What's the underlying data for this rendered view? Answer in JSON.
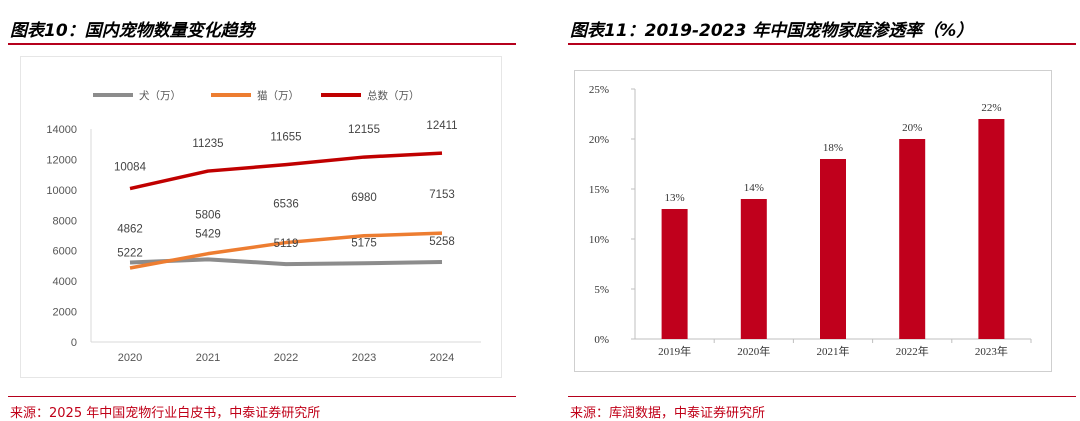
{
  "left": {
    "title": "图表10：国内宠物数量变化趋势",
    "source": "来源：2025 年中国宠物行业白皮书，中泰证券研究所"
  },
  "right": {
    "title": "图表11：2019-2023 年中国宠物家庭渗透率（%）",
    "source": "来源：库润数据，中泰证券研究所"
  },
  "colors": {
    "accent": "#b5001c",
    "dog": "#8c8c8c",
    "cat": "#ed7d31",
    "total": "#c00000",
    "bar": "#c0001c"
  },
  "chart_data": [
    {
      "type": "line",
      "title": "",
      "x": [
        "2020",
        "2021",
        "2022",
        "2023",
        "2024"
      ],
      "ylim": [
        0,
        14000
      ],
      "yticks": [
        0,
        2000,
        4000,
        6000,
        8000,
        10000,
        12000,
        14000
      ],
      "grid": false,
      "legend_position": "top",
      "series": [
        {
          "name": "犬（万）",
          "values": [
            5222,
            5429,
            5119,
            5175,
            5258
          ],
          "labels": [
            "5222",
            "5429",
            "5119",
            "5175",
            "5258"
          ]
        },
        {
          "name": "猫（万）",
          "values": [
            4862,
            5806,
            6536,
            6980,
            7153
          ],
          "labels": [
            "4862",
            "5806",
            "6536",
            "6980",
            "7153"
          ]
        },
        {
          "name": "总数（万）",
          "values": [
            10084,
            11235,
            11655,
            12155,
            12411
          ],
          "labels": [
            "10084",
            "11235",
            "11655",
            "12155",
            "12411"
          ]
        }
      ]
    },
    {
      "type": "bar",
      "title": "",
      "categories": [
        "2019年",
        "2020年",
        "2021年",
        "2022年",
        "2023年"
      ],
      "values": [
        13,
        14,
        18,
        20,
        22
      ],
      "data_labels": [
        "13%",
        "14%",
        "18%",
        "20%",
        "22%"
      ],
      "ylim": [
        0,
        25
      ],
      "yticks": [
        0,
        5,
        10,
        15,
        20,
        25
      ],
      "ytick_labels": [
        "0%",
        "5%",
        "10%",
        "15%",
        "20%",
        "25%"
      ],
      "grid": false
    }
  ]
}
